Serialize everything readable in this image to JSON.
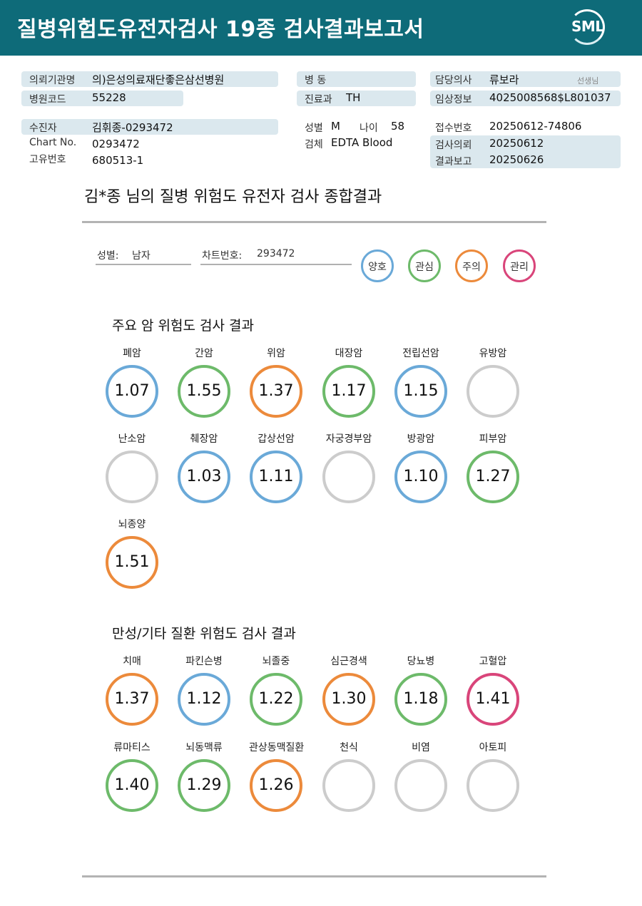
{
  "header": {
    "title": "질병위험도유전자검사 19종 검사결과보고서",
    "logo_text": "SML"
  },
  "report": {
    "institution_label": "의뢰기관명",
    "institution": "의)은성의료재단좋은삼선병원",
    "hospital_code_label": "병원코드",
    "hospital_code": "55228",
    "ward_label": "병 동",
    "ward": "",
    "department_label": "진료과",
    "department": "TH",
    "doctor_label": "담당의사",
    "doctor": "류보라",
    "doctor_suffix": "선생님",
    "clinical_info_label": "임상정보",
    "clinical_info": "4025008568$L801037",
    "patient_label": "수진자",
    "patient": "김휘종-0293472",
    "chart_label": "Chart No.",
    "chart": "0293472",
    "unique_id_label": "고유번호",
    "unique_id": "680513-1",
    "sex_label": "성별",
    "sex": "M",
    "age_label": "나이",
    "age": "58",
    "specimen_label": "검체",
    "specimen": "EDTA Blood",
    "receipt_label": "접수번호",
    "receipt": "20250612-74806",
    "request_label": "검사의뢰",
    "request_date": "20250612",
    "result_label": "결과보고",
    "result_date": "20250626"
  },
  "summary": {
    "title": "김*종 님의 질병 위험도 유전자 검사 종합결과",
    "sex_label": "성별:",
    "sex": "남자",
    "chart_label": "차트번호:",
    "chart": "293472",
    "legend": [
      {
        "label": "양호",
        "color": "#6aa9d8"
      },
      {
        "label": "관심",
        "color": "#6dba6a"
      },
      {
        "label": "주의",
        "color": "#ec8a3b"
      },
      {
        "label": "관리",
        "color": "#d9457a"
      }
    ]
  },
  "cancer": {
    "title": "주요 암 위험도 검사 결과",
    "items": [
      {
        "name": "폐암",
        "value": "1.07",
        "level": "양호"
      },
      {
        "name": "간암",
        "value": "1.55",
        "level": "관심"
      },
      {
        "name": "위암",
        "value": "1.37",
        "level": "주의"
      },
      {
        "name": "대장암",
        "value": "1.17",
        "level": "관심"
      },
      {
        "name": "전립선암",
        "value": "1.15",
        "level": "양호"
      },
      {
        "name": "유방암",
        "value": "",
        "level": "none"
      },
      {
        "name": "난소암",
        "value": "",
        "level": "none"
      },
      {
        "name": "췌장암",
        "value": "1.03",
        "level": "양호"
      },
      {
        "name": "갑상선암",
        "value": "1.11",
        "level": "양호"
      },
      {
        "name": "자궁경부암",
        "value": "",
        "level": "none"
      },
      {
        "name": "방광암",
        "value": "1.10",
        "level": "양호"
      },
      {
        "name": "피부암",
        "value": "1.27",
        "level": "관심"
      },
      {
        "name": "뇌종양",
        "value": "1.51",
        "level": "주의"
      }
    ]
  },
  "chronic": {
    "title": "만성/기타 질환 위험도 검사 결과",
    "items": [
      {
        "name": "치매",
        "value": "1.37",
        "level": "주의"
      },
      {
        "name": "파킨슨병",
        "value": "1.12",
        "level": "양호"
      },
      {
        "name": "뇌졸중",
        "value": "1.22",
        "level": "관심"
      },
      {
        "name": "심근경색",
        "value": "1.30",
        "level": "주의"
      },
      {
        "name": "당뇨병",
        "value": "1.18",
        "level": "관심"
      },
      {
        "name": "고혈압",
        "value": "1.41",
        "level": "관리"
      },
      {
        "name": "류마티스",
        "value": "1.40",
        "level": "관심"
      },
      {
        "name": "뇌동맥류",
        "value": "1.29",
        "level": "관심"
      },
      {
        "name": "관상동맥질환",
        "value": "1.26",
        "level": "주의"
      },
      {
        "name": "천식",
        "value": "",
        "level": "none"
      },
      {
        "name": "비염",
        "value": "",
        "level": "none"
      },
      {
        "name": "아토피",
        "value": "",
        "level": "none"
      }
    ]
  }
}
